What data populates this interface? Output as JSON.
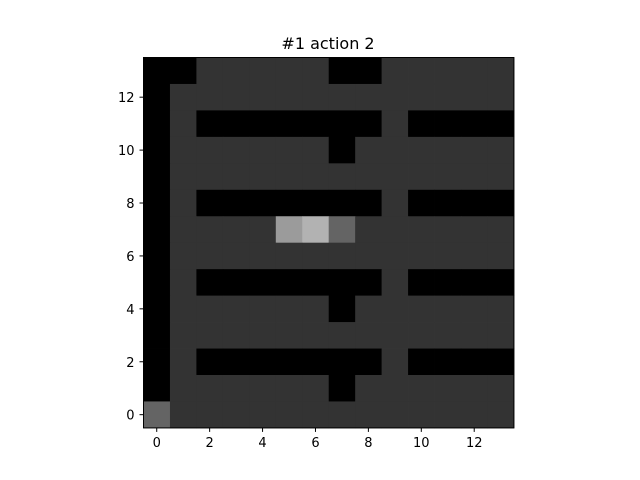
{
  "figure": {
    "title": "#1 action 2"
  },
  "chart_data": {
    "type": "heatmap",
    "title": "#1 action 2",
    "xlabel": "",
    "ylabel": "",
    "x_ticks": [
      0,
      2,
      4,
      6,
      8,
      10,
      12
    ],
    "y_ticks": [
      0,
      2,
      4,
      6,
      8,
      10,
      12
    ],
    "x_tick_labels": [
      "0",
      "2",
      "4",
      "6",
      "8",
      "10",
      "12"
    ],
    "y_tick_labels": [
      "0",
      "2",
      "4",
      "6",
      "8",
      "10",
      "12"
    ],
    "xlim": [
      -0.5,
      13.5
    ],
    "ylim": [
      -0.5,
      13.5
    ],
    "grid": false,
    "palette": [
      "#000000",
      "#333333",
      "#646464",
      "#9b9b9b",
      "#b2b2b2"
    ],
    "rows_top_to_bottom": [
      "00111110011111",
      "01111111111111",
      "01000000010000",
      "01111110111111",
      "01111111111111",
      "01000000010000",
      "01111342111111",
      "01111111111111",
      "01000000010000",
      "01111110111111",
      "01111111111111",
      "01000000010000",
      "01111110111111",
      "21111111111111"
    ]
  }
}
